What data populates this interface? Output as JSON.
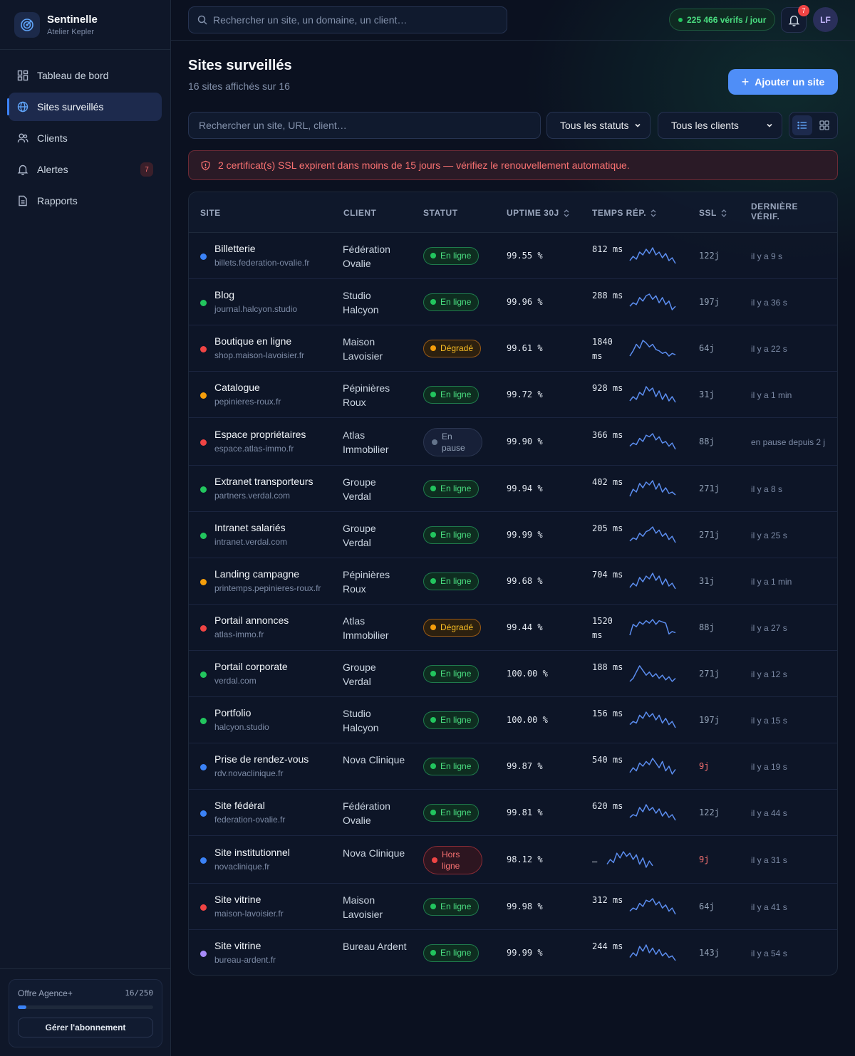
{
  "brand": {
    "name": "Sentinelle",
    "workspace": "Atelier Kepler",
    "logo_icon": "radar-icon"
  },
  "nav": [
    {
      "label": "Tableau de bord",
      "icon": "dashboard-icon",
      "active": false,
      "badge": ""
    },
    {
      "label": "Sites surveillés",
      "icon": "globe-icon",
      "active": true,
      "badge": ""
    },
    {
      "label": "Clients",
      "icon": "users-icon",
      "active": false,
      "badge": ""
    },
    {
      "label": "Alertes",
      "icon": "bell-icon",
      "active": false,
      "badge": "7"
    },
    {
      "label": "Rapports",
      "icon": "report-icon",
      "active": false,
      "badge": ""
    }
  ],
  "plan": {
    "name": "Offre Agence+",
    "count": "16/250",
    "usage_fraction": 0.064,
    "button": "Gérer l'abonnement"
  },
  "topbar": {
    "search_placeholder": "Rechercher un site, un domaine, un client…",
    "checks_pill": "225 466 vérifs / jour",
    "notif_count": "7",
    "avatar": "LF"
  },
  "page": {
    "title": "Sites surveillés",
    "subtitle": "16 sites affichés sur 16",
    "add_button": "Ajouter un site"
  },
  "filters": {
    "search_placeholder": "Rechercher un site, URL, client…",
    "status_select": "Tous les statuts",
    "client_select": "Tous les clients"
  },
  "alert": {
    "text": "2 certificat(s) SSL expirent dans moins de 15 jours — vérifiez le renouvellement automatique."
  },
  "table": {
    "headers": {
      "site": "SITE",
      "client": "CLIENT",
      "status": "STATUT",
      "uptime": "UPTIME 30J",
      "resp": "TEMPS RÉP.",
      "ssl": "SSL",
      "last": "DERNIÈRE VÉRIF."
    },
    "rows": [
      {
        "name": "Billetterie",
        "url": "billets.federation-ovalie.fr",
        "client": "Fédération Ovalie",
        "status": "ok",
        "status_label": "En ligne",
        "uptime": "99.55 %",
        "resp": "812 ms",
        "ssl": "122j",
        "ssl_alert": false,
        "last": "il y a 9 s",
        "dot": "#3b82f6",
        "spark": [
          12,
          9,
          11,
          6,
          8,
          4,
          7,
          3,
          8,
          6,
          10,
          7,
          12,
          10,
          14
        ]
      },
      {
        "name": "Blog",
        "url": "journal.halcyon.studio",
        "client": "Studio Halcyon",
        "status": "ok",
        "status_label": "En ligne",
        "uptime": "99.96 %",
        "resp": "288 ms",
        "ssl": "197j",
        "ssl_alert": false,
        "last": "il y a 36 s",
        "dot": "#22c55e",
        "spark": [
          11,
          9,
          10,
          6,
          8,
          5,
          4,
          7,
          5,
          9,
          6,
          10,
          8,
          13,
          11
        ]
      },
      {
        "name": "Boutique en ligne",
        "url": "shop.maison-lavoisier.fr",
        "client": "Maison Lavoisier",
        "status": "warn",
        "status_label": "Dégradé",
        "uptime": "99.61 %",
        "resp": "1840 ms",
        "ssl": "64j",
        "ssl_alert": false,
        "last": "il y a 22 s",
        "dot": "#ef4444",
        "spark": [
          14,
          10,
          5,
          8,
          2,
          4,
          7,
          5,
          9,
          10,
          12,
          11,
          14,
          12,
          13
        ]
      },
      {
        "name": "Catalogue",
        "url": "pepinieres-roux.fr",
        "client": "Pépinières Roux",
        "status": "ok",
        "status_label": "En ligne",
        "uptime": "99.72 %",
        "resp": "928 ms",
        "ssl": "31j",
        "ssl_alert": false,
        "last": "il y a 1 min",
        "dot": "#f59e0b",
        "spark": [
          13,
          10,
          12,
          7,
          9,
          3,
          6,
          4,
          10,
          6,
          12,
          8,
          13,
          10,
          14
        ]
      },
      {
        "name": "Espace propriétaires",
        "url": "espace.atlas-immo.fr",
        "client": "Atlas Immobilier",
        "status": "pause",
        "status_label": "En pause",
        "uptime": "99.90 %",
        "resp": "366 ms",
        "ssl": "88j",
        "ssl_alert": false,
        "last": "en pause depuis 2 j",
        "dot": "#ef4444",
        "spark": [
          12,
          10,
          11,
          7,
          9,
          5,
          6,
          4,
          8,
          6,
          10,
          9,
          12,
          10,
          14
        ]
      },
      {
        "name": "Extranet transporteurs",
        "url": "partners.verdal.com",
        "client": "Groupe Verdal",
        "status": "ok",
        "status_label": "En ligne",
        "uptime": "99.94 %",
        "resp": "402 ms",
        "ssl": "271j",
        "ssl_alert": false,
        "last": "il y a 8 s",
        "dot": "#22c55e",
        "spark": [
          14,
          9,
          11,
          5,
          8,
          4,
          6,
          3,
          9,
          5,
          11,
          8,
          12,
          11,
          13
        ]
      },
      {
        "name": "Intranet salariés",
        "url": "intranet.verdal.com",
        "client": "Groupe Verdal",
        "status": "ok",
        "status_label": "En ligne",
        "uptime": "99.99 %",
        "resp": "205 ms",
        "ssl": "271j",
        "ssl_alert": false,
        "last": "il y a 25 s",
        "dot": "#22c55e",
        "spark": [
          12,
          10,
          11,
          7,
          9,
          6,
          5,
          3,
          7,
          5,
          9,
          7,
          11,
          9,
          13
        ]
      },
      {
        "name": "Landing campagne",
        "url": "printemps.pepinieres-roux.fr",
        "client": "Pépinières Roux",
        "status": "ok",
        "status_label": "En ligne",
        "uptime": "99.68 %",
        "resp": "704 ms",
        "ssl": "31j",
        "ssl_alert": false,
        "last": "il y a 1 min",
        "dot": "#f59e0b",
        "spark": [
          13,
          10,
          12,
          6,
          9,
          5,
          7,
          3,
          8,
          5,
          11,
          7,
          12,
          10,
          14
        ]
      },
      {
        "name": "Portail annonces",
        "url": "atlas-immo.fr",
        "client": "Atlas Immobilier",
        "status": "warn",
        "status_label": "Dégradé",
        "uptime": "99.44 %",
        "resp": "1520 ms",
        "ssl": "88j",
        "ssl_alert": false,
        "last": "il y a 27 s",
        "dot": "#ef4444",
        "spark": [
          15,
          6,
          8,
          4,
          6,
          3,
          5,
          2,
          6,
          3,
          4,
          5,
          14,
          12,
          13
        ]
      },
      {
        "name": "Portail corporate",
        "url": "verdal.com",
        "client": "Groupe Verdal",
        "status": "ok",
        "status_label": "En ligne",
        "uptime": "100.00 %",
        "resp": "188 ms",
        "ssl": "271j",
        "ssl_alert": false,
        "last": "il y a 12 s",
        "dot": "#22c55e",
        "spark": [
          14,
          12,
          8,
          4,
          7,
          10,
          8,
          11,
          9,
          12,
          10,
          13,
          11,
          14,
          12
        ]
      },
      {
        "name": "Portfolio",
        "url": "halcyon.studio",
        "client": "Studio Halcyon",
        "status": "ok",
        "status_label": "En ligne",
        "uptime": "100.00 %",
        "resp": "156 ms",
        "ssl": "197j",
        "ssl_alert": false,
        "last": "il y a 15 s",
        "dot": "#22c55e",
        "spark": [
          12,
          10,
          11,
          6,
          8,
          4,
          7,
          5,
          9,
          6,
          11,
          8,
          12,
          10,
          14
        ]
      },
      {
        "name": "Prise de rendez-vous",
        "url": "rdv.novaclinique.fr",
        "client": "Nova Clinique",
        "status": "ok",
        "status_label": "En ligne",
        "uptime": "99.87 %",
        "resp": "540 ms",
        "ssl": "9j",
        "ssl_alert": true,
        "last": "il y a 19 s",
        "dot": "#3b82f6",
        "spark": [
          13,
          10,
          12,
          7,
          9,
          6,
          8,
          4,
          7,
          10,
          6,
          12,
          9,
          14,
          11
        ]
      },
      {
        "name": "Site fédéral",
        "url": "federation-ovalie.fr",
        "client": "Fédération Ovalie",
        "status": "ok",
        "status_label": "En ligne",
        "uptime": "99.81 %",
        "resp": "620 ms",
        "ssl": "122j",
        "ssl_alert": false,
        "last": "il y a 44 s",
        "dot": "#3b82f6",
        "spark": [
          12,
          10,
          11,
          5,
          8,
          3,
          7,
          5,
          9,
          6,
          11,
          8,
          12,
          10,
          14
        ]
      },
      {
        "name": "Site institutionnel",
        "url": "novaclinique.fr",
        "client": "Nova Clinique",
        "status": "down",
        "status_label": "Hors ligne",
        "uptime": "98.12 %",
        "resp": "—",
        "ssl": "9j",
        "ssl_alert": true,
        "last": "il y a 31 s",
        "dot": "#3b82f6",
        "spark": [
          12,
          9,
          11,
          5,
          8,
          4,
          7,
          5,
          9,
          6,
          12,
          8,
          14,
          10,
          13
        ]
      },
      {
        "name": "Site vitrine",
        "url": "maison-lavoisier.fr",
        "client": "Maison Lavoisier",
        "status": "ok",
        "status_label": "En ligne",
        "uptime": "99.98 %",
        "resp": "312 ms",
        "ssl": "64j",
        "ssl_alert": false,
        "last": "il y a 41 s",
        "dot": "#ef4444",
        "spark": [
          12,
          10,
          11,
          7,
          9,
          5,
          6,
          4,
          8,
          6,
          10,
          8,
          12,
          10,
          14
        ]
      },
      {
        "name": "Site vitrine",
        "url": "bureau-ardent.fr",
        "client": "Bureau Ardent",
        "status": "ok",
        "status_label": "En ligne",
        "uptime": "99.99 %",
        "resp": "244 ms",
        "ssl": "143j",
        "ssl_alert": false,
        "last": "il y a 54 s",
        "dot": "#a78bfa",
        "spark": [
          12,
          9,
          11,
          5,
          8,
          4,
          9,
          6,
          10,
          7,
          11,
          9,
          12,
          11,
          14
        ]
      }
    ]
  }
}
